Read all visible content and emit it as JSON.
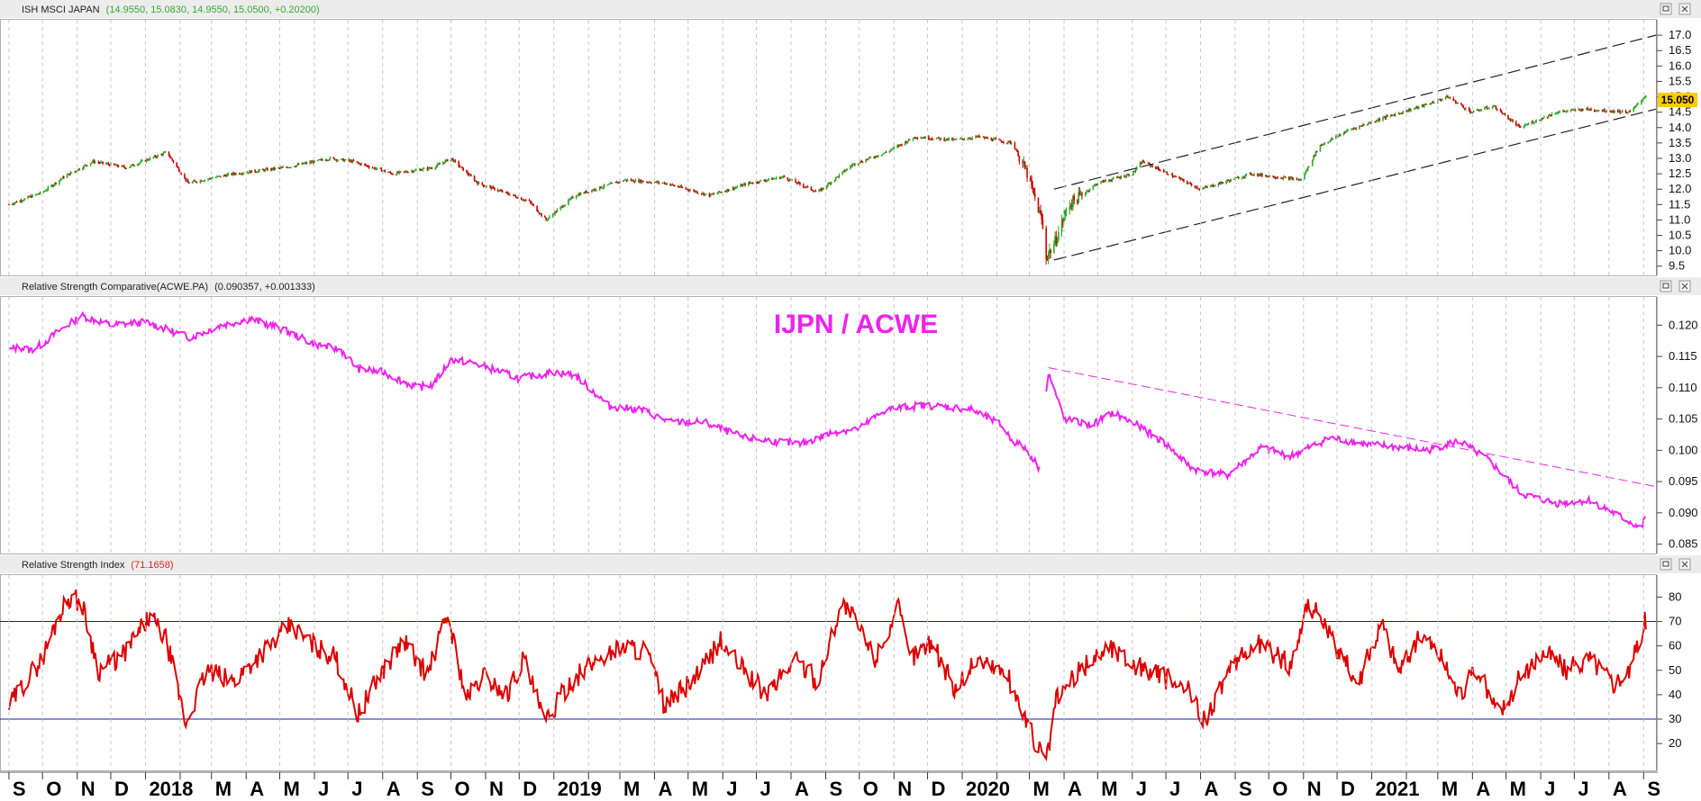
{
  "chart_data": [
    {
      "type": "candlestick",
      "title": "ISH MSCI JAPAN",
      "header_values": "(14.9550, 15.0830, 14.9550, 15.0500, +0.20200)",
      "last_price": "15.050",
      "ylim": [
        9.2,
        17.5
      ],
      "y_ticks": [
        "9.5",
        "10.0",
        "10.5",
        "11.0",
        "11.5",
        "12.0",
        "12.5",
        "13.0",
        "13.5",
        "14.0",
        "14.5",
        "15.0",
        "15.5",
        "16.0",
        "16.5",
        "17.0"
      ],
      "up_color": "#22aa22",
      "down_color": "#cc0000",
      "x": [
        "2017-09-01",
        "2017-10-01",
        "2017-10-20",
        "2017-11-15",
        "2017-12-15",
        "2018-01-20",
        "2018-02-08",
        "2018-03-20",
        "2018-05-05",
        "2018-06-15",
        "2018-07-05",
        "2018-08-10",
        "2018-09-15",
        "2018-10-01",
        "2018-10-25",
        "2018-12-10",
        "2018-12-25",
        "2019-01-20",
        "2019-03-05",
        "2019-04-10",
        "2019-05-20",
        "2019-06-25",
        "2019-07-25",
        "2019-08-25",
        "2019-09-25",
        "2019-10-25",
        "2019-11-20",
        "2019-12-25",
        "2020-01-15",
        "2020-02-15",
        "2020-02-28",
        "2020-03-12",
        "2020-03-16",
        "2020-03-23",
        "2020-04-05",
        "2020-05-01",
        "2020-06-01",
        "2020-06-10",
        "2020-07-15",
        "2020-08-01",
        "2020-09-15",
        "2020-10-30",
        "2020-11-15",
        "2020-12-10",
        "2021-01-10",
        "2021-02-15",
        "2021-03-10",
        "2021-03-31",
        "2021-04-20",
        "2021-05-13",
        "2021-06-15",
        "2021-07-10",
        "2021-08-20",
        "2021-09-03"
      ],
      "close": [
        11.5,
        11.9,
        12.4,
        12.9,
        12.7,
        13.2,
        12.2,
        12.5,
        12.7,
        13.0,
        12.9,
        12.5,
        12.7,
        13.0,
        12.2,
        11.6,
        11.0,
        11.8,
        12.3,
        12.2,
        11.8,
        12.2,
        12.4,
        11.9,
        12.8,
        13.2,
        13.7,
        13.6,
        13.7,
        13.5,
        12.5,
        11.0,
        9.8,
        10.2,
        11.5,
        12.2,
        12.5,
        12.9,
        12.3,
        12.0,
        12.5,
        12.3,
        13.4,
        13.9,
        14.3,
        14.7,
        15.0,
        14.5,
        14.7,
        14.0,
        14.5,
        14.6,
        14.5,
        15.05
      ],
      "channel_lines": [
        {
          "x": [
            "2020-03-23",
            "2021-09-12"
          ],
          "y": [
            12.0,
            17.0
          ]
        },
        {
          "x": [
            "2020-03-23",
            "2021-09-12"
          ],
          "y": [
            9.7,
            14.6
          ]
        }
      ]
    },
    {
      "type": "line",
      "title": "Relative Strength Comparative(ACWE.PA)",
      "header_values": "(0.090357, +0.001333)",
      "annotation": "IJPN / ACWE",
      "ylim": [
        0.0835,
        0.1245
      ],
      "y_ticks": [
        "0.085",
        "0.090",
        "0.095",
        "0.100",
        "0.105",
        "0.110",
        "0.115",
        "0.120"
      ],
      "color": "#ee22ee",
      "series_segments": [
        {
          "x": [
            "2017-09-01",
            "2017-09-10",
            "2017-09-20",
            "2017-10-01",
            "2017-10-15",
            "2017-11-05",
            "2017-12-01",
            "2018-01-01",
            "2018-02-10",
            "2018-03-10",
            "2018-04-05",
            "2018-05-01",
            "2018-06-01",
            "2018-06-25",
            "2018-07-10",
            "2018-08-01",
            "2018-09-01",
            "2018-09-15",
            "2018-10-01",
            "2018-10-20",
            "2018-11-15",
            "2018-12-01",
            "2019-01-01",
            "2019-01-20",
            "2019-02-20",
            "2019-03-20",
            "2019-04-15",
            "2019-05-15",
            "2019-06-20",
            "2019-07-15",
            "2019-08-10",
            "2019-09-10",
            "2019-10-01",
            "2019-10-25",
            "2019-11-25",
            "2019-12-15",
            "2020-01-10",
            "2020-02-05",
            "2020-02-15",
            "2020-02-25",
            "2020-03-05",
            "2020-03-10"
          ],
          "y": [
            0.116,
            0.1165,
            0.116,
            0.117,
            0.119,
            0.1215,
            0.12,
            0.1205,
            0.118,
            0.12,
            0.121,
            0.1195,
            0.117,
            0.116,
            0.113,
            0.1125,
            0.11,
            0.1105,
            0.1145,
            0.114,
            0.1125,
            0.1115,
            0.1125,
            0.112,
            0.107,
            0.1065,
            0.1045,
            0.1045,
            0.102,
            0.1015,
            0.101,
            0.103,
            0.1035,
            0.1065,
            0.1072,
            0.107,
            0.1065,
            0.104,
            0.1015,
            0.1005,
            0.0985,
            0.097
          ]
        },
        {
          "x": [
            "2020-03-15",
            "2020-03-18",
            "2020-04-01",
            "2020-04-25",
            "2020-05-15",
            "2020-06-10",
            "2020-07-01",
            "2020-07-25",
            "2020-08-25",
            "2020-09-25",
            "2020-10-20",
            "2020-11-25",
            "2020-12-25",
            "2021-01-25",
            "2021-02-20",
            "2021-03-20",
            "2021-04-15",
            "2021-05-15",
            "2021-06-15",
            "2021-07-15",
            "2021-08-10",
            "2021-08-30",
            "2021-09-05"
          ],
          "y": [
            0.1085,
            0.1125,
            0.105,
            0.104,
            0.106,
            0.1035,
            0.101,
            0.097,
            0.096,
            0.1005,
            0.099,
            0.102,
            0.101,
            0.1005,
            0.1,
            0.1015,
            0.0985,
            0.093,
            0.0915,
            0.092,
            0.0895,
            0.0875,
            0.0905
          ]
        }
      ],
      "trend_line": {
        "x": [
          "2020-03-18",
          "2021-09-12"
        ],
        "y": [
          0.1132,
          0.0942
        ]
      }
    },
    {
      "type": "line",
      "title": "Relative Strength Index",
      "header_values": "(71.1658)",
      "ylim": [
        9,
        89
      ],
      "y_ticks": [
        "20",
        "30",
        "40",
        "50",
        "60",
        "70",
        "80"
      ],
      "color": "#dd0000",
      "guide_color": "#1a1aa0",
      "guides": [
        30,
        70
      ],
      "x": [
        "2017-09-01",
        "2017-09-15",
        "2017-10-01",
        "2017-10-15",
        "2017-10-25",
        "2017-11-05",
        "2017-11-20",
        "2017-12-10",
        "2018-01-05",
        "2018-01-20",
        "2018-02-06",
        "2018-02-25",
        "2018-03-20",
        "2018-04-10",
        "2018-05-10",
        "2018-06-01",
        "2018-06-20",
        "2018-07-10",
        "2018-08-01",
        "2018-08-20",
        "2018-09-10",
        "2018-09-28",
        "2018-10-15",
        "2018-10-30",
        "2018-11-20",
        "2018-12-05",
        "2018-12-24",
        "2019-01-15",
        "2019-02-10",
        "2019-03-05",
        "2019-03-25",
        "2019-04-10",
        "2019-05-10",
        "2019-05-30",
        "2019-06-20",
        "2019-07-10",
        "2019-08-05",
        "2019-08-25",
        "2019-09-15",
        "2019-09-25",
        "2019-10-15",
        "2019-11-05",
        "2019-11-15",
        "2019-12-05",
        "2019-12-25",
        "2020-01-15",
        "2020-02-10",
        "2020-02-25",
        "2020-03-05",
        "2020-03-16",
        "2020-03-25",
        "2020-04-15",
        "2020-05-10",
        "2020-06-05",
        "2020-06-25",
        "2020-07-20",
        "2020-08-05",
        "2020-08-25",
        "2020-09-20",
        "2020-10-20",
        "2020-11-05",
        "2020-11-15",
        "2020-12-01",
        "2020-12-20",
        "2021-01-10",
        "2021-01-25",
        "2021-02-15",
        "2021-03-05",
        "2021-03-20",
        "2021-04-05",
        "2021-04-25",
        "2021-05-15",
        "2021-06-05",
        "2021-06-25",
        "2021-07-15",
        "2021-08-05",
        "2021-08-20",
        "2021-09-03"
      ],
      "y": [
        35,
        45,
        55,
        72,
        80,
        78,
        50,
        55,
        72,
        62,
        28,
        50,
        45,
        55,
        68,
        60,
        55,
        32,
        50,
        62,
        48,
        73,
        38,
        48,
        40,
        55,
        28,
        45,
        55,
        60,
        58,
        35,
        48,
        62,
        50,
        40,
        55,
        45,
        78,
        72,
        55,
        75,
        55,
        62,
        42,
        55,
        48,
        32,
        22,
        12,
        38,
        50,
        60,
        52,
        48,
        42,
        30,
        48,
        62,
        52,
        78,
        72,
        58,
        45,
        70,
        50,
        65,
        55,
        40,
        50,
        32,
        48,
        58,
        50,
        55,
        45,
        50,
        71
      ]
    }
  ],
  "x_axis": {
    "labels": [
      "S",
      "O",
      "N",
      "D",
      "2018",
      "M",
      "A",
      "M",
      "J",
      "J",
      "A",
      "S",
      "O",
      "N",
      "D",
      "2019",
      "M",
      "A",
      "M",
      "J",
      "J",
      "A",
      "S",
      "O",
      "N",
      "D",
      "2020",
      "M",
      "A",
      "M",
      "J",
      "J",
      "A",
      "S",
      "O",
      "N",
      "D",
      "2021",
      "M",
      "A",
      "M",
      "J",
      "J",
      "A",
      "S"
    ],
    "label_dates": [
      "2017-09-01",
      "2017-10-01",
      "2017-11-01",
      "2017-12-01",
      "2018-01-01",
      "2018-03-01",
      "2018-04-01",
      "2018-05-01",
      "2018-06-01",
      "2018-07-01",
      "2018-08-01",
      "2018-09-01",
      "2018-10-01",
      "2018-11-01",
      "2018-12-01",
      "2019-01-01",
      "2019-03-01",
      "2019-04-01",
      "2019-05-01",
      "2019-06-01",
      "2019-07-01",
      "2019-08-01",
      "2019-09-01",
      "2019-10-01",
      "2019-11-01",
      "2019-12-01",
      "2020-01-01",
      "2020-03-01",
      "2020-04-01",
      "2020-05-01",
      "2020-06-01",
      "2020-07-01",
      "2020-08-01",
      "2020-09-01",
      "2020-10-01",
      "2020-11-01",
      "2020-12-01",
      "2021-01-01",
      "2021-03-01",
      "2021-04-01",
      "2021-05-01",
      "2021-06-01",
      "2021-07-01",
      "2021-08-01",
      "2021-09-01"
    ]
  }
}
